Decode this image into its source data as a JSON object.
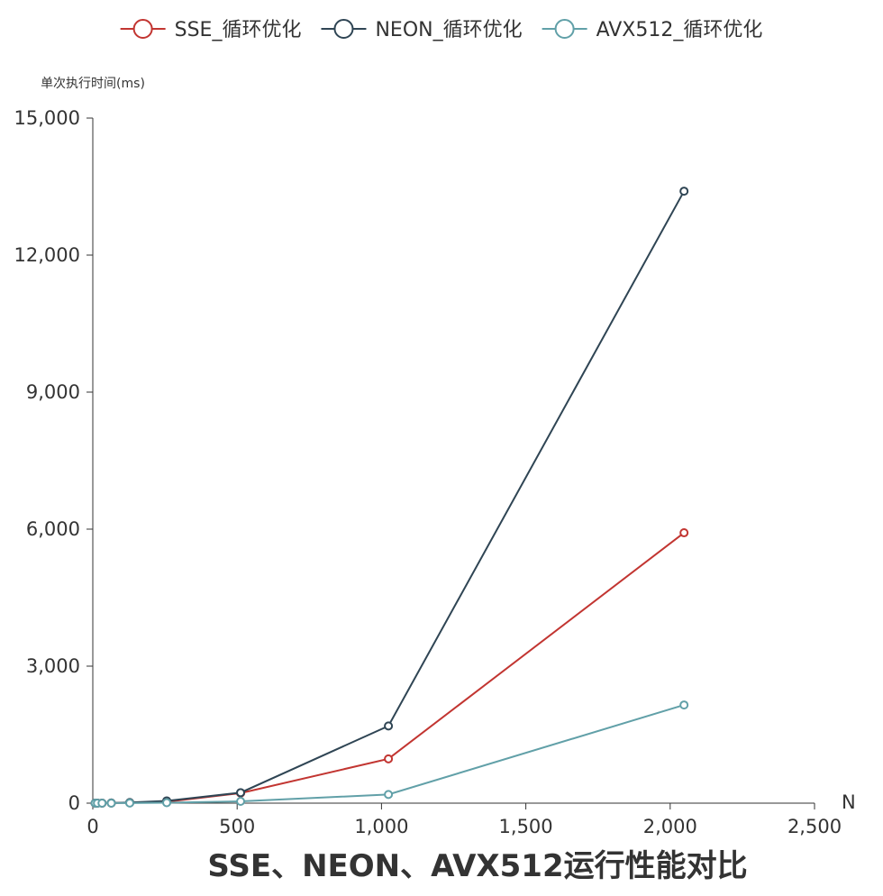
{
  "chart_data": {
    "type": "line",
    "title": "SSE、NEON、AVX512运行性能对比",
    "xlabel": "N",
    "ylabel": "单次执行时间(ms)",
    "xlim": [
      0,
      2500
    ],
    "ylim": [
      0,
      15000
    ],
    "x_ticks": [
      "0",
      "500",
      "1,000",
      "1,500",
      "2,000",
      "2,500"
    ],
    "y_ticks": [
      "0",
      "3,000",
      "6,000",
      "9,000",
      "12,000",
      "15,000"
    ],
    "legend_position": "top-center",
    "grid": false,
    "x": [
      8,
      16,
      32,
      64,
      128,
      256,
      512,
      1024,
      2048
    ],
    "series": [
      {
        "name": "SSE_循环优化",
        "color": "#c23531",
        "values": [
          0.1,
          0.3,
          1,
          3,
          10,
          30,
          220,
          970,
          5920
        ]
      },
      {
        "name": "NEON_循环优化",
        "color": "#2f4554",
        "values": [
          0.1,
          0.3,
          1,
          4,
          15,
          50,
          230,
          1690,
          13400
        ]
      },
      {
        "name": "AVX512_循环优化",
        "color": "#61a0a8",
        "values": [
          0.1,
          0.2,
          0.5,
          1,
          3,
          10,
          40,
          190,
          2150
        ]
      }
    ]
  }
}
